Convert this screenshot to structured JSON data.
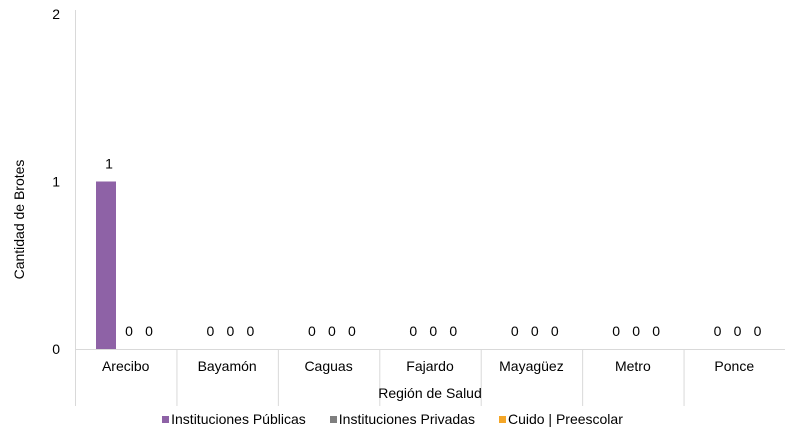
{
  "chart_data": {
    "type": "bar",
    "title": "",
    "xlabel": "Región de Salud",
    "ylabel": "Cantidad de Brotes",
    "ylim": [
      0,
      2
    ],
    "yticks": [
      0,
      1,
      2
    ],
    "grid": false,
    "legend_position": "bottom",
    "categories": [
      "Arecibo",
      "Bayamón",
      "Caguas",
      "Fajardo",
      "Mayagüez",
      "Metro",
      "Ponce"
    ],
    "series": [
      {
        "name": "Instituciones Públicas",
        "color": "#8e62a6",
        "values": [
          1,
          0,
          0,
          0,
          0,
          0,
          0
        ]
      },
      {
        "name": "Instituciones Privadas",
        "color": "#7f7f7f",
        "values": [
          0,
          0,
          0,
          0,
          0,
          0,
          0
        ]
      },
      {
        "name": "Cuido | Preescolar",
        "color": "#f4a627",
        "values": [
          0,
          0,
          0,
          0,
          0,
          0,
          0
        ]
      }
    ]
  }
}
